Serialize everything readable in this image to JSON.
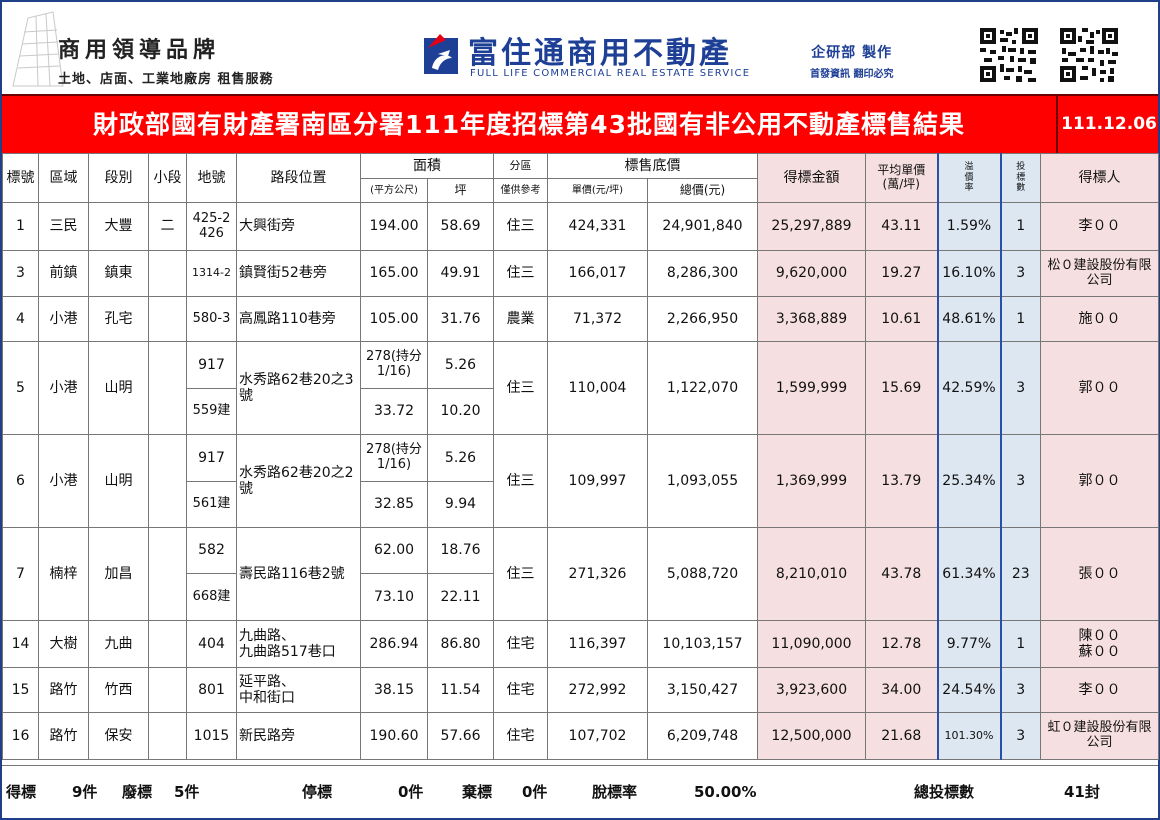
{
  "header": {
    "brand_title": "商用領導品牌",
    "brand_subtitle": "土地、店面、工業地廠房 租售服務",
    "company_name": "富住通商用不動產",
    "company_en": "FULL LIFE COMMERCIAL REAL ESTATE SERVICE",
    "research_title": "企研部 製作",
    "research_sub": "首發資訊 翻印必究"
  },
  "banner": {
    "title": "財政部國有財產署南區分署111年度招標第43批國有非公用不動產標售結果",
    "date": "111.12.06"
  },
  "table": {
    "headers": {
      "no": "標號",
      "district": "區域",
      "section": "段別",
      "subsection": "小段",
      "lot": "地號",
      "location": "路段位置",
      "area": "面積",
      "area_m2": "(平方公尺)",
      "area_ping": "坪",
      "zone": "分區",
      "zone_sub": "僅供參考",
      "base_price": "標售底價",
      "unit_price": "單價(元/坪)",
      "total_price": "總價(元)",
      "winning_amount": "得標金額",
      "avg_unit": "平均單價\n(萬/坪)",
      "premium": "溢\n價\n率",
      "bids": "投\n標\n數",
      "winner": "得標人"
    },
    "rows": [
      {
        "no": "1",
        "district": "三民",
        "section": "大豐",
        "subsection": "二",
        "parcels": [
          {
            "lot": "425-2\n426",
            "m2": "194.00",
            "ping": "58.69"
          }
        ],
        "location": "大興街旁",
        "zone": "住三",
        "unit_price": "424,331",
        "total_price": "24,901,840",
        "winning_amount": "25,297,889",
        "avg_unit": "43.11",
        "premium": "1.59%",
        "bids": "1",
        "winner": "李００"
      },
      {
        "no": "3",
        "district": "前鎮",
        "section": "鎮東",
        "subsection": "",
        "parcels": [
          {
            "lot": "1314-2",
            "m2": "165.00",
            "ping": "49.91"
          }
        ],
        "location": "鎮賢街52巷旁",
        "zone": "住三",
        "unit_price": "166,017",
        "total_price": "8,286,300",
        "winning_amount": "9,620,000",
        "avg_unit": "19.27",
        "premium": "16.10%",
        "bids": "3",
        "winner": "松０建設股份有限公司"
      },
      {
        "no": "4",
        "district": "小港",
        "section": "孔宅",
        "subsection": "",
        "parcels": [
          {
            "lot": "580-3",
            "m2": "105.00",
            "ping": "31.76"
          }
        ],
        "location": "高鳳路110巷旁",
        "zone": "農業",
        "unit_price": "71,372",
        "total_price": "2,266,950",
        "winning_amount": "3,368,889",
        "avg_unit": "10.61",
        "premium": "48.61%",
        "bids": "1",
        "winner": "施００"
      },
      {
        "no": "5",
        "district": "小港",
        "section": "山明",
        "subsection": "",
        "parcels": [
          {
            "lot": "917",
            "m2": "278(持分1/16)",
            "ping": "5.26"
          },
          {
            "lot": "559建",
            "m2": "33.72",
            "ping": "10.20"
          }
        ],
        "location": "水秀路62巷20之3號",
        "zone": "住三",
        "unit_price": "110,004",
        "total_price": "1,122,070",
        "winning_amount": "1,599,999",
        "avg_unit": "15.69",
        "premium": "42.59%",
        "bids": "3",
        "winner": "郭００"
      },
      {
        "no": "6",
        "district": "小港",
        "section": "山明",
        "subsection": "",
        "parcels": [
          {
            "lot": "917",
            "m2": "278(持分1/16)",
            "ping": "5.26"
          },
          {
            "lot": "561建",
            "m2": "32.85",
            "ping": "9.94"
          }
        ],
        "location": "水秀路62巷20之2號",
        "zone": "住三",
        "unit_price": "109,997",
        "total_price": "1,093,055",
        "winning_amount": "1,369,999",
        "avg_unit": "13.79",
        "premium": "25.34%",
        "bids": "3",
        "winner": "郭００"
      },
      {
        "no": "7",
        "district": "楠梓",
        "section": "加昌",
        "subsection": "",
        "parcels": [
          {
            "lot": "582",
            "m2": "62.00",
            "ping": "18.76"
          },
          {
            "lot": "668建",
            "m2": "73.10",
            "ping": "22.11"
          }
        ],
        "location": "壽民路116巷2號",
        "zone": "住三",
        "unit_price": "271,326",
        "total_price": "5,088,720",
        "winning_amount": "8,210,010",
        "avg_unit": "43.78",
        "premium": "61.34%",
        "bids": "23",
        "winner": "張００"
      },
      {
        "no": "14",
        "district": "大樹",
        "section": "九曲",
        "subsection": "",
        "parcels": [
          {
            "lot": "404",
            "m2": "286.94",
            "ping": "86.80"
          }
        ],
        "location": "九曲路、\n九曲路517巷口",
        "zone": "住宅",
        "unit_price": "116,397",
        "total_price": "10,103,157",
        "winning_amount": "11,090,000",
        "avg_unit": "12.78",
        "premium": "9.77%",
        "bids": "1",
        "winner": "陳００\n蘇００"
      },
      {
        "no": "15",
        "district": "路竹",
        "section": "竹西",
        "subsection": "",
        "parcels": [
          {
            "lot": "801",
            "m2": "38.15",
            "ping": "11.54"
          }
        ],
        "location": "延平路、\n中和街口",
        "zone": "住宅",
        "unit_price": "272,992",
        "total_price": "3,150,427",
        "winning_amount": "3,923,600",
        "avg_unit": "34.00",
        "premium": "24.54%",
        "bids": "3",
        "winner": "李００"
      },
      {
        "no": "16",
        "district": "路竹",
        "section": "保安",
        "subsection": "",
        "parcels": [
          {
            "lot": "1015",
            "m2": "190.60",
            "ping": "57.66"
          }
        ],
        "location": "新民路旁",
        "zone": "住宅",
        "unit_price": "107,702",
        "total_price": "6,209,748",
        "winning_amount": "12,500,000",
        "avg_unit": "21.68",
        "premium": "101.30%",
        "bids": "3",
        "winner": "虹０建設股份有限公司"
      }
    ]
  },
  "footer": {
    "won_label": "得標",
    "won_value": "9件",
    "failed_label": "廢標",
    "failed_value": "5件",
    "stopped_label": "停標",
    "stopped_value": "0件",
    "abandoned_label": "棄標",
    "abandoned_value": "0件",
    "rate_label": "脫標率",
    "rate_value": "50.00%",
    "total_bids_label": "總投標數",
    "total_bids_value": "41封"
  },
  "colors": {
    "banner_red": "#ff0000",
    "brand_blue": "#1d3f96",
    "winning_pink": "#f6dfe0",
    "premium_blue": "#dde7f2"
  }
}
